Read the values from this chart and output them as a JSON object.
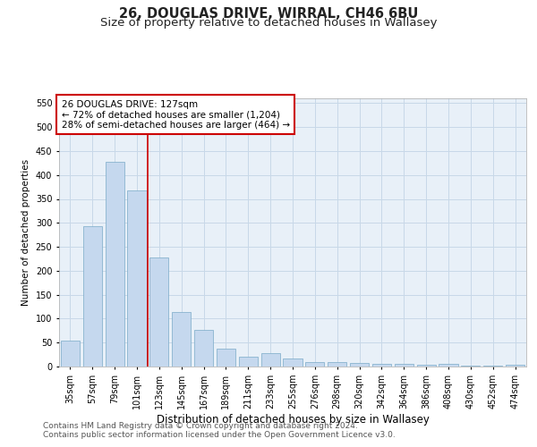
{
  "title1": "26, DOUGLAS DRIVE, WIRRAL, CH46 6BU",
  "title2": "Size of property relative to detached houses in Wallasey",
  "xlabel": "Distribution of detached houses by size in Wallasey",
  "ylabel": "Number of detached properties",
  "categories": [
    "35sqm",
    "57sqm",
    "79sqm",
    "101sqm",
    "123sqm",
    "145sqm",
    "167sqm",
    "189sqm",
    "211sqm",
    "233sqm",
    "255sqm",
    "276sqm",
    "298sqm",
    "320sqm",
    "342sqm",
    "364sqm",
    "386sqm",
    "408sqm",
    "430sqm",
    "452sqm",
    "474sqm"
  ],
  "values": [
    55,
    293,
    428,
    368,
    228,
    113,
    77,
    38,
    20,
    28,
    16,
    10,
    9,
    8,
    6,
    5,
    4,
    6,
    1,
    1,
    3
  ],
  "bar_color": "#c5d8ee",
  "bar_edge_color": "#7aaac8",
  "red_line_x": 3.5,
  "annotation_title": "26 DOUGLAS DRIVE: 127sqm",
  "annotation_line1": "← 72% of detached houses are smaller (1,204)",
  "annotation_line2": "28% of semi-detached houses are larger (464) →",
  "annotation_box_color": "#ffffff",
  "annotation_border_color": "#cc0000",
  "ylim": [
    0,
    560
  ],
  "yticks": [
    0,
    50,
    100,
    150,
    200,
    250,
    300,
    350,
    400,
    450,
    500,
    550
  ],
  "footer1": "Contains HM Land Registry data © Crown copyright and database right 2024.",
  "footer2": "Contains public sector information licensed under the Open Government Licence v3.0.",
  "bg_color": "#ffffff",
  "plot_bg_color": "#e8f0f8",
  "grid_color": "#c8d8e8",
  "title1_fontsize": 10.5,
  "title2_fontsize": 9.5,
  "xlabel_fontsize": 8.5,
  "ylabel_fontsize": 7.5,
  "tick_fontsize": 7,
  "annotation_fontsize": 7.5,
  "footer_fontsize": 6.5
}
